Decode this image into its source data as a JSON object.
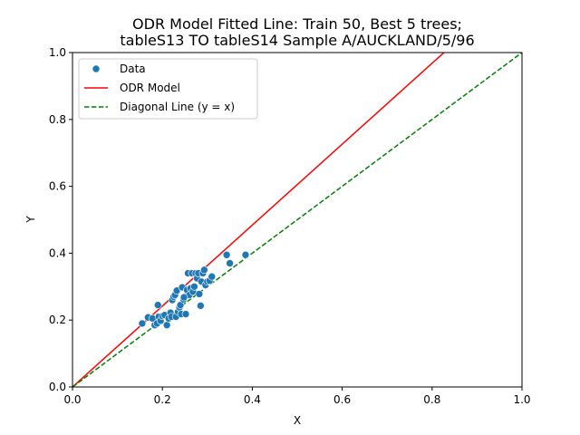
{
  "chart_data": {
    "type": "scatter",
    "title_line1": "ODR Model Fitted Line: Train 50, Best 5 trees;",
    "title_line2": "tableS13 TO tableS14 Sample A/AUCKLAND/5/96",
    "xlabel": "X",
    "ylabel": "Y",
    "xlim": [
      0.0,
      1.0
    ],
    "ylim": [
      0.0,
      1.0
    ],
    "xticks": [
      "0.0",
      "0.2",
      "0.4",
      "0.6",
      "0.8",
      "1.0"
    ],
    "yticks": [
      "0.0",
      "0.2",
      "0.4",
      "0.6",
      "0.8",
      "1.0"
    ],
    "grid": false,
    "legend_position": "top-left",
    "legend": {
      "data_label": "Data",
      "model_label": "ODR Model",
      "diagonal_label": "Diagonal Line (y = x)"
    },
    "colors": {
      "data": "#1f77b4",
      "model": "#ff0000",
      "diagonal": "#008000"
    },
    "odr_line": {
      "slope": 1.21,
      "intercept": 0.0
    },
    "diagonal_line": {
      "slope": 1.0,
      "intercept": 0.0
    },
    "points": [
      [
        0.155,
        0.19
      ],
      [
        0.168,
        0.208
      ],
      [
        0.178,
        0.205
      ],
      [
        0.183,
        0.185
      ],
      [
        0.188,
        0.19
      ],
      [
        0.19,
        0.245
      ],
      [
        0.192,
        0.21
      ],
      [
        0.196,
        0.198
      ],
      [
        0.2,
        0.212
      ],
      [
        0.205,
        0.215
      ],
      [
        0.21,
        0.185
      ],
      [
        0.214,
        0.205
      ],
      [
        0.218,
        0.222
      ],
      [
        0.22,
        0.21
      ],
      [
        0.222,
        0.26
      ],
      [
        0.225,
        0.27
      ],
      [
        0.228,
        0.275
      ],
      [
        0.23,
        0.21
      ],
      [
        0.232,
        0.288
      ],
      [
        0.235,
        0.225
      ],
      [
        0.238,
        0.238
      ],
      [
        0.24,
        0.245
      ],
      [
        0.242,
        0.218
      ],
      [
        0.244,
        0.298
      ],
      [
        0.247,
        0.262
      ],
      [
        0.25,
        0.27
      ],
      [
        0.252,
        0.218
      ],
      [
        0.255,
        0.29
      ],
      [
        0.257,
        0.34
      ],
      [
        0.26,
        0.275
      ],
      [
        0.263,
        0.295
      ],
      [
        0.266,
        0.34
      ],
      [
        0.268,
        0.285
      ],
      [
        0.271,
        0.3
      ],
      [
        0.274,
        0.34
      ],
      [
        0.277,
        0.325
      ],
      [
        0.28,
        0.34
      ],
      [
        0.282,
        0.278
      ],
      [
        0.285,
        0.243
      ],
      [
        0.287,
        0.315
      ],
      [
        0.29,
        0.34
      ],
      [
        0.293,
        0.35
      ],
      [
        0.296,
        0.305
      ],
      [
        0.3,
        0.315
      ],
      [
        0.305,
        0.318
      ],
      [
        0.31,
        0.33
      ],
      [
        0.343,
        0.395
      ],
      [
        0.35,
        0.37
      ],
      [
        0.385,
        0.395
      ],
      [
        0.248,
        0.268
      ]
    ]
  }
}
